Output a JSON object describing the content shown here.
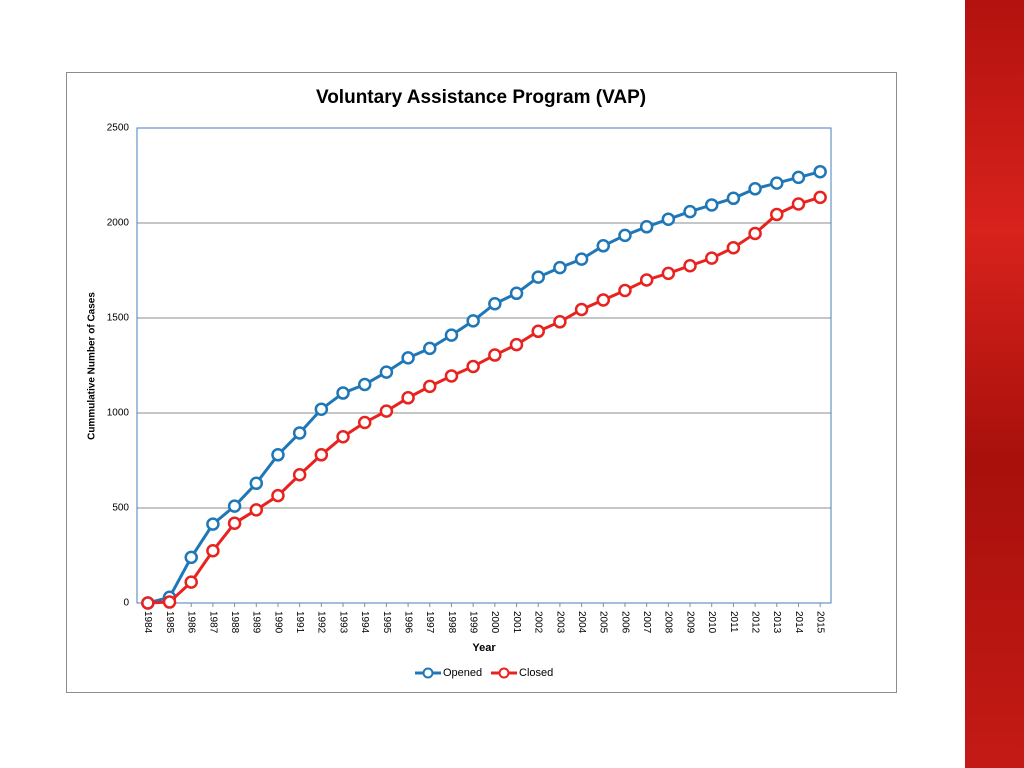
{
  "chart_data": {
    "type": "line",
    "title": "Voluntary Assistance Program (VAP)",
    "x_label": "Year",
    "y_label": "Cummulative Number of Cases",
    "categories": [
      "1984",
      "1985",
      "1986",
      "1987",
      "1988",
      "1989",
      "1990",
      "1991",
      "1992",
      "1993",
      "1994",
      "1995",
      "1996",
      "1997",
      "1998",
      "1999",
      "2000",
      "2001",
      "2002",
      "2003",
      "2004",
      "2005",
      "2006",
      "2007",
      "2008",
      "2009",
      "2010",
      "2011",
      "2012",
      "2013",
      "2014",
      "2015"
    ],
    "series": [
      {
        "name": "Opened",
        "color": "#1f77b8",
        "values": [
          0,
          30,
          240,
          415,
          510,
          630,
          780,
          895,
          1020,
          1105,
          1150,
          1215,
          1290,
          1340,
          1410,
          1485,
          1575,
          1630,
          1715,
          1765,
          1810,
          1880,
          1935,
          1980,
          2020,
          2060,
          2095,
          2130,
          2180,
          2210,
          2240,
          2270
        ]
      },
      {
        "name": "Closed",
        "color": "#e8231f",
        "values": [
          0,
          5,
          110,
          275,
          420,
          490,
          565,
          675,
          780,
          875,
          950,
          1010,
          1080,
          1140,
          1195,
          1245,
          1305,
          1360,
          1430,
          1480,
          1545,
          1595,
          1645,
          1700,
          1735,
          1775,
          1815,
          1870,
          1945,
          2045,
          2100,
          2135
        ]
      }
    ],
    "ylim": [
      0,
      2500
    ],
    "yticks": [
      0,
      500,
      1000,
      1500,
      2000,
      2500
    ],
    "grid": true,
    "legend": "bottom"
  }
}
